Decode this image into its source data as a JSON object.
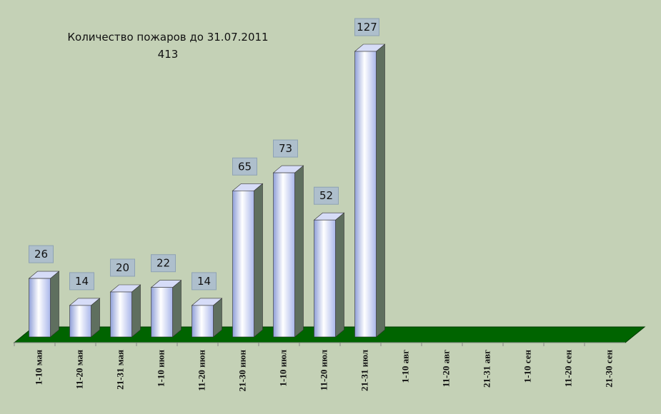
{
  "chart_data": {
    "type": "bar3d",
    "title": "Количество пожаров до 31.07.2011",
    "subtitle": "413",
    "categories": [
      "1-10 мая",
      "11-20 мая",
      "21-31 мая",
      "1-10 июн",
      "11-20 июн",
      "21-30 июн",
      "1-10 июл",
      "11-20 июл",
      "21-31 июл",
      "1-10 авг",
      "11-20 авг",
      "21-31 авг",
      "1-10 сен",
      "11-20 сен",
      "21-30 сен"
    ],
    "values": [
      26,
      14,
      20,
      22,
      14,
      65,
      73,
      52,
      127,
      null,
      null,
      null,
      null,
      null,
      null
    ],
    "color": "#b8c4f0"
  }
}
